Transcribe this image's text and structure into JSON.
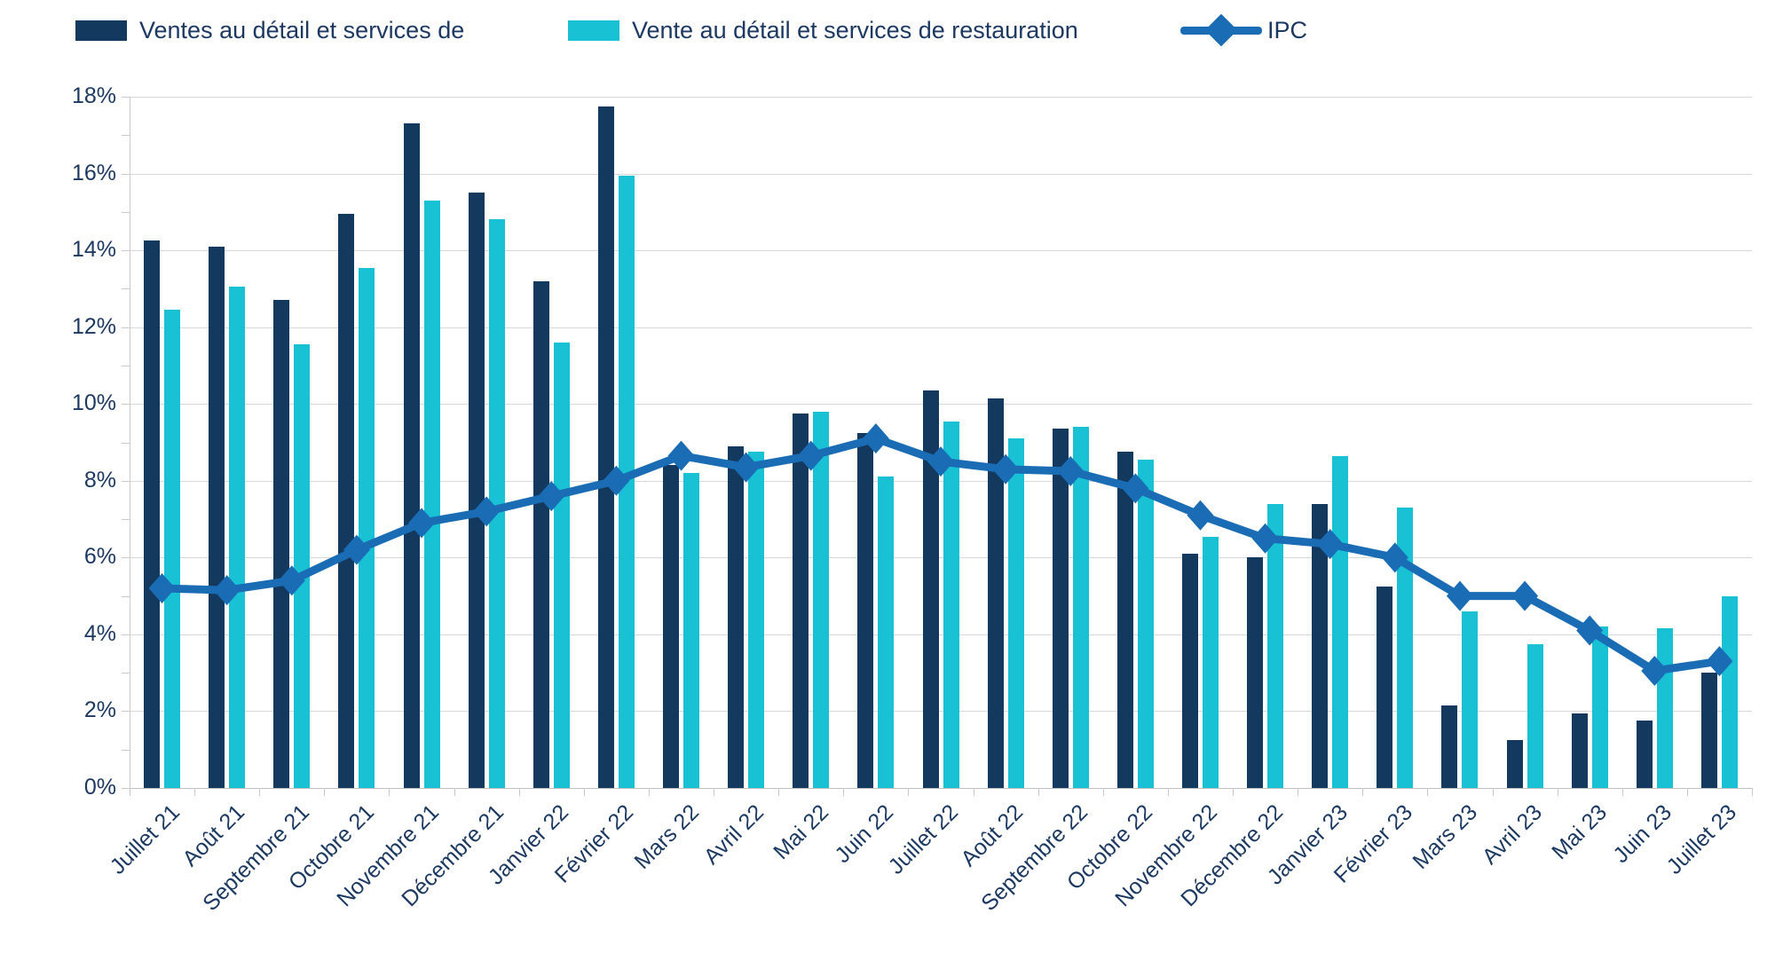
{
  "chart_data": {
    "type": "bar",
    "title": "",
    "xlabel": "",
    "ylabel": "",
    "ylim": [
      0,
      18
    ],
    "ytick_step": 2,
    "ytick_suffix": "%",
    "grid": true,
    "legend_position": "top",
    "categories": [
      "Juillet 21",
      "Août 21",
      "Septembre 21",
      "Octobre 21",
      "Novembre 21",
      "Décembre 21",
      "Janvier 22",
      "Février 22",
      "Mars 22",
      "Avril 22",
      "Mai 22",
      "Juin 22",
      "Juillet 22",
      "Août 22",
      "Septembre 22",
      "Octobre 22",
      "Novembre 22",
      "Décembre 22",
      "Janvier 23",
      "Février 23",
      "Mars 23",
      "Avril 23",
      "Mai 23",
      "Juin 23",
      "Juillet 23"
    ],
    "series": [
      {
        "name": "Ventes au détail et services de",
        "type": "bar",
        "color": "#13395E",
        "values": [
          14.25,
          14.1,
          12.7,
          14.95,
          17.3,
          15.5,
          13.2,
          17.75,
          8.4,
          8.9,
          9.75,
          9.25,
          10.35,
          10.15,
          9.35,
          8.75,
          6.1,
          6.0,
          7.4,
          5.25,
          2.15,
          1.25,
          1.95,
          1.75,
          3.0
        ]
      },
      {
        "name": "Vente au détail et services de restauration",
        "type": "bar",
        "color": "#18C1D4",
        "values": [
          12.45,
          13.05,
          11.55,
          13.55,
          15.3,
          14.8,
          11.6,
          15.95,
          8.2,
          8.75,
          9.8,
          8.1,
          9.55,
          9.1,
          9.4,
          8.55,
          6.55,
          7.4,
          8.65,
          7.3,
          4.6,
          3.75,
          4.2,
          4.15,
          5.0
        ]
      },
      {
        "name": "IPC",
        "type": "line",
        "color": "#1A6DB5",
        "values": [
          5.2,
          5.15,
          5.4,
          6.2,
          6.9,
          7.2,
          7.6,
          8.0,
          8.65,
          8.35,
          8.65,
          9.1,
          8.5,
          8.3,
          8.25,
          7.8,
          7.1,
          6.5,
          6.35,
          6.0,
          5.0,
          5.0,
          4.1,
          3.05,
          3.3
        ]
      }
    ]
  },
  "legend": {
    "bar1_label": "Ventes au détail et services de",
    "bar2_label": "Vente au détail et services de restauration",
    "line_label": "IPC"
  },
  "colors": {
    "bar1": "#13395E",
    "bar2": "#18C1D4",
    "line": "#1A6DB5",
    "text": "#1C3962",
    "grid": "#D8D8D8"
  }
}
